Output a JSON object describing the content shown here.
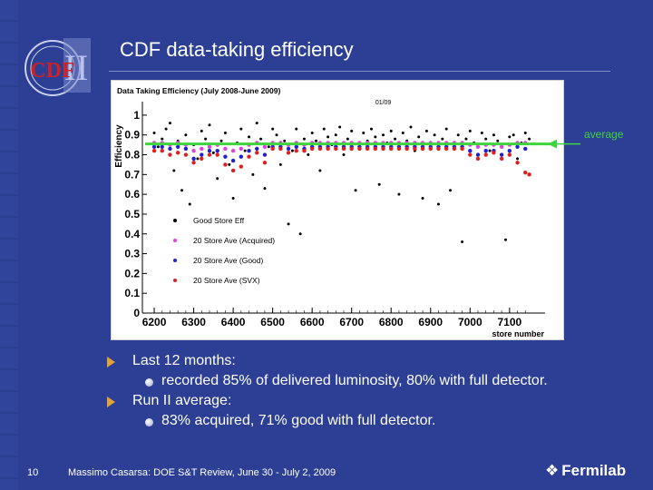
{
  "slide": {
    "title": "CDF data-taking efficiency",
    "logo_text": "CDF",
    "logo_numeral": "II",
    "average_label": "average",
    "page_number": "10",
    "footer": "Massimo Casarsa: DOE S&T Review, June 30 - July 2, 2009",
    "fermilab_icon": "❖",
    "fermilab": "Fermilab",
    "colors": {
      "background": "#2c3f95",
      "average_line": "#3ed43e",
      "bullet_arrow": "#e2a23a"
    }
  },
  "bullets": [
    {
      "level": 1,
      "text": "Last 12 months:"
    },
    {
      "level": 2,
      "text": "recorded 85% of delivered luminosity, 80% with full detector."
    },
    {
      "level": 1,
      "text": "Run II average:"
    },
    {
      "level": 2,
      "text": "83% acquired, 71% good with full detector."
    }
  ],
  "chart_data": {
    "type": "scatter",
    "title": "Data Taking Efficiency (July 2008-June 2009)",
    "annotation": "01/09",
    "annotation_x": 6760,
    "xlabel": "store number",
    "ylabel": "Efficiency",
    "xlim": [
      6170,
      7190
    ],
    "ylim": [
      0,
      1.05
    ],
    "xticks": [
      6200,
      6300,
      6400,
      6500,
      6600,
      6700,
      6800,
      6900,
      7000,
      7100
    ],
    "yticks": [
      0,
      0.1,
      0.2,
      0.3,
      0.4,
      0.5,
      0.6,
      0.7,
      0.8,
      0.9,
      1
    ],
    "ytick_labels": [
      "0",
      "0.1",
      "0.2",
      "0.3",
      "0.4",
      "0.5",
      "0.6",
      "0.7",
      "0.8",
      "0.9",
      "1"
    ],
    "grid": false,
    "legend_position": "bottom-left",
    "average": {
      "y": 0.85,
      "color": "#3ed43e"
    },
    "series": [
      {
        "name": "Good Store Eff",
        "color": "#000000",
        "points": [
          [
            6200,
            0.91
          ],
          [
            6210,
            0.84
          ],
          [
            6220,
            0.88
          ],
          [
            6230,
            0.93
          ],
          [
            6240,
            0.96
          ],
          [
            6250,
            0.72
          ],
          [
            6260,
            0.87
          ],
          [
            6270,
            0.62
          ],
          [
            6280,
            0.9
          ],
          [
            6290,
            0.55
          ],
          [
            6300,
            0.85
          ],
          [
            6310,
            0.78
          ],
          [
            6320,
            0.92
          ],
          [
            6330,
            0.88
          ],
          [
            6340,
            0.95
          ],
          [
            6350,
            0.81
          ],
          [
            6360,
            0.68
          ],
          [
            6370,
            0.87
          ],
          [
            6380,
            0.91
          ],
          [
            6390,
            0.75
          ],
          [
            6400,
            0.58
          ],
          [
            6410,
            0.86
          ],
          [
            6420,
            0.93
          ],
          [
            6430,
            0.82
          ],
          [
            6440,
            0.89
          ],
          [
            6450,
            0.7
          ],
          [
            6460,
            0.96
          ],
          [
            6470,
            0.88
          ],
          [
            6480,
            0.63
          ],
          [
            6490,
            0.84
          ],
          [
            6500,
            0.93
          ],
          [
            6510,
            0.9
          ],
          [
            6520,
            0.75
          ],
          [
            6530,
            0.87
          ],
          [
            6540,
            0.45
          ],
          [
            6550,
            0.82
          ],
          [
            6560,
            0.93
          ],
          [
            6570,
            0.4
          ],
          [
            6580,
            0.88
          ],
          [
            6590,
            0.8
          ],
          [
            6600,
            0.91
          ],
          [
            6610,
            0.87
          ],
          [
            6620,
            0.72
          ],
          [
            6630,
            0.93
          ],
          [
            6640,
            0.89
          ],
          [
            6650,
            0.85
          ],
          [
            6660,
            0.9
          ],
          [
            6670,
            0.94
          ],
          [
            6680,
            0.8
          ],
          [
            6690,
            0.88
          ],
          [
            6700,
            0.92
          ],
          [
            6710,
            0.62
          ],
          [
            6720,
            0.86
          ],
          [
            6730,
            0.91
          ],
          [
            6740,
            0.87
          ],
          [
            6750,
            0.93
          ],
          [
            6760,
            0.89
          ],
          [
            6770,
            0.65
          ],
          [
            6780,
            0.9
          ],
          [
            6790,
            0.86
          ],
          [
            6800,
            0.92
          ],
          [
            6810,
            0.88
          ],
          [
            6820,
            0.6
          ],
          [
            6830,
            0.91
          ],
          [
            6840,
            0.87
          ],
          [
            6850,
            0.94
          ],
          [
            6860,
            0.82
          ],
          [
            6870,
            0.89
          ],
          [
            6880,
            0.58
          ],
          [
            6890,
            0.92
          ],
          [
            6900,
            0.86
          ],
          [
            6910,
            0.9
          ],
          [
            6920,
            0.55
          ],
          [
            6930,
            0.88
          ],
          [
            6940,
            0.93
          ],
          [
            6950,
            0.62
          ],
          [
            6960,
            0.85
          ],
          [
            6970,
            0.9
          ],
          [
            6980,
            0.36
          ],
          [
            6990,
            0.88
          ],
          [
            7000,
            0.92
          ],
          [
            7010,
            0.86
          ],
          [
            7020,
            0.8
          ],
          [
            7030,
            0.91
          ],
          [
            7040,
            0.88
          ],
          [
            7050,
            0.82
          ],
          [
            7060,
            0.9
          ],
          [
            7070,
            0.87
          ],
          [
            7080,
            0.78
          ],
          [
            7090,
            0.37
          ],
          [
            7100,
            0.89
          ],
          [
            7110,
            0.9
          ],
          [
            7120,
            0.78
          ],
          [
            7130,
            0.86
          ],
          [
            7140,
            0.91
          ],
          [
            7150,
            0.88
          ]
        ]
      },
      {
        "name": "20 Store Ave (Acquired)",
        "color": "#e040e0",
        "points": [
          [
            6200,
            0.86
          ],
          [
            6220,
            0.86
          ],
          [
            6240,
            0.85
          ],
          [
            6260,
            0.86
          ],
          [
            6280,
            0.85
          ],
          [
            6300,
            0.82
          ],
          [
            6320,
            0.83
          ],
          [
            6340,
            0.84
          ],
          [
            6360,
            0.85
          ],
          [
            6380,
            0.83
          ],
          [
            6400,
            0.82
          ],
          [
            6420,
            0.83
          ],
          [
            6440,
            0.85
          ],
          [
            6460,
            0.86
          ],
          [
            6480,
            0.84
          ],
          [
            6500,
            0.86
          ],
          [
            6520,
            0.86
          ],
          [
            6540,
            0.85
          ],
          [
            6560,
            0.86
          ],
          [
            6580,
            0.85
          ],
          [
            6600,
            0.86
          ],
          [
            6620,
            0.86
          ],
          [
            6640,
            0.86
          ],
          [
            6660,
            0.86
          ],
          [
            6680,
            0.86
          ],
          [
            6700,
            0.86
          ],
          [
            6720,
            0.86
          ],
          [
            6740,
            0.86
          ],
          [
            6760,
            0.86
          ],
          [
            6780,
            0.86
          ],
          [
            6800,
            0.86
          ],
          [
            6820,
            0.86
          ],
          [
            6840,
            0.86
          ],
          [
            6860,
            0.86
          ],
          [
            6880,
            0.86
          ],
          [
            6900,
            0.86
          ],
          [
            6920,
            0.86
          ],
          [
            6940,
            0.86
          ],
          [
            6960,
            0.86
          ],
          [
            6980,
            0.86
          ],
          [
            7000,
            0.85
          ],
          [
            7020,
            0.84
          ],
          [
            7040,
            0.85
          ],
          [
            7060,
            0.85
          ],
          [
            7080,
            0.84
          ],
          [
            7100,
            0.85
          ],
          [
            7120,
            0.86
          ],
          [
            7140,
            0.86
          ]
        ]
      },
      {
        "name": "20 Store Ave (Good)",
        "color": "#2020d0",
        "points": [
          [
            6200,
            0.84
          ],
          [
            6220,
            0.84
          ],
          [
            6240,
            0.83
          ],
          [
            6260,
            0.84
          ],
          [
            6280,
            0.83
          ],
          [
            6300,
            0.78
          ],
          [
            6320,
            0.8
          ],
          [
            6340,
            0.82
          ],
          [
            6360,
            0.82
          ],
          [
            6380,
            0.79
          ],
          [
            6400,
            0.77
          ],
          [
            6420,
            0.79
          ],
          [
            6440,
            0.82
          ],
          [
            6460,
            0.83
          ],
          [
            6480,
            0.8
          ],
          [
            6500,
            0.84
          ],
          [
            6520,
            0.84
          ],
          [
            6540,
            0.83
          ],
          [
            6560,
            0.84
          ],
          [
            6580,
            0.83
          ],
          [
            6600,
            0.84
          ],
          [
            6620,
            0.84
          ],
          [
            6640,
            0.84
          ],
          [
            6660,
            0.84
          ],
          [
            6680,
            0.84
          ],
          [
            6700,
            0.84
          ],
          [
            6720,
            0.84
          ],
          [
            6740,
            0.84
          ],
          [
            6760,
            0.84
          ],
          [
            6780,
            0.84
          ],
          [
            6800,
            0.84
          ],
          [
            6820,
            0.84
          ],
          [
            6840,
            0.84
          ],
          [
            6860,
            0.84
          ],
          [
            6880,
            0.84
          ],
          [
            6900,
            0.84
          ],
          [
            6920,
            0.84
          ],
          [
            6940,
            0.84
          ],
          [
            6960,
            0.84
          ],
          [
            6980,
            0.84
          ],
          [
            7000,
            0.82
          ],
          [
            7020,
            0.8
          ],
          [
            7040,
            0.82
          ],
          [
            7060,
            0.82
          ],
          [
            7080,
            0.8
          ],
          [
            7100,
            0.82
          ],
          [
            7120,
            0.84
          ],
          [
            7140,
            0.83
          ]
        ]
      },
      {
        "name": "20 Store Ave (SVX)",
        "color": "#e02020",
        "points": [
          [
            6200,
            0.82
          ],
          [
            6220,
            0.82
          ],
          [
            6240,
            0.8
          ],
          [
            6260,
            0.81
          ],
          [
            6280,
            0.8
          ],
          [
            6300,
            0.76
          ],
          [
            6320,
            0.78
          ],
          [
            6340,
            0.8
          ],
          [
            6360,
            0.8
          ],
          [
            6380,
            0.75
          ],
          [
            6400,
            0.72
          ],
          [
            6420,
            0.74
          ],
          [
            6440,
            0.79
          ],
          [
            6460,
            0.81
          ],
          [
            6480,
            0.76
          ],
          [
            6500,
            0.83
          ],
          [
            6520,
            0.83
          ],
          [
            6540,
            0.81
          ],
          [
            6560,
            0.82
          ],
          [
            6580,
            0.82
          ],
          [
            6600,
            0.83
          ],
          [
            6620,
            0.83
          ],
          [
            6640,
            0.83
          ],
          [
            6660,
            0.83
          ],
          [
            6680,
            0.83
          ],
          [
            6700,
            0.83
          ],
          [
            6720,
            0.83
          ],
          [
            6740,
            0.83
          ],
          [
            6760,
            0.83
          ],
          [
            6780,
            0.83
          ],
          [
            6800,
            0.83
          ],
          [
            6820,
            0.83
          ],
          [
            6840,
            0.83
          ],
          [
            6860,
            0.83
          ],
          [
            6880,
            0.83
          ],
          [
            6900,
            0.83
          ],
          [
            6920,
            0.83
          ],
          [
            6940,
            0.83
          ],
          [
            6960,
            0.83
          ],
          [
            6980,
            0.83
          ],
          [
            7000,
            0.8
          ],
          [
            7020,
            0.78
          ],
          [
            7040,
            0.8
          ],
          [
            7060,
            0.81
          ],
          [
            7080,
            0.78
          ],
          [
            7100,
            0.8
          ],
          [
            7120,
            0.76
          ],
          [
            7140,
            0.71
          ],
          [
            7150,
            0.7
          ]
        ]
      }
    ]
  }
}
